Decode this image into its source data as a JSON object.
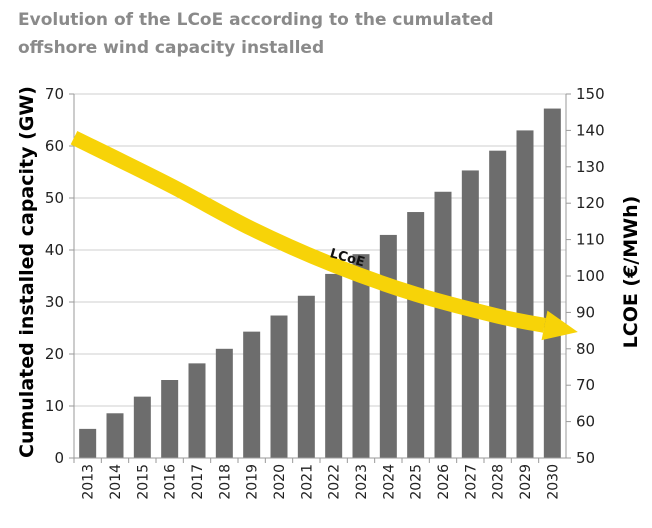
{
  "title_lines": [
    "Evolution of the LCoE according to the cumulated",
    "offshore wind capacity installed"
  ],
  "colors": {
    "bar": "#6d6d6d",
    "lcoe": "#f7d308",
    "title": "#8a8a8a"
  },
  "chart_data": {
    "type": "bar",
    "title": "Evolution of the LCoE according to the cumulated offshore wind capacity installed",
    "categories": [
      "2013",
      "2014",
      "2015",
      "2016",
      "2017",
      "2018",
      "2019",
      "2020",
      "2021",
      "2022",
      "2023",
      "2024",
      "2025",
      "2026",
      "2027",
      "2028",
      "2029",
      "2030"
    ],
    "series": [
      {
        "name": "Cumulated installed capacity (GW)",
        "axis": "left",
        "values": [
          5.6,
          8.6,
          11.8,
          15,
          18.2,
          21,
          24.3,
          27.4,
          31.2,
          35.4,
          39.2,
          42.9,
          47.3,
          51.2,
          55.3,
          59.1,
          63,
          67.2
        ]
      },
      {
        "name": "LCoE",
        "type": "line",
        "axis": "right",
        "x": [
          2013,
          2016,
          2019,
          2022,
          2025,
          2028,
          2030
        ],
        "values": [
          138,
          125,
          113,
          103,
          95,
          89,
          86
        ]
      }
    ],
    "ylabel": "Cumulated installed capacity (GW)",
    "ylim": [
      0,
      70
    ],
    "yticks": [
      0,
      10,
      20,
      30,
      40,
      50,
      60,
      70
    ],
    "y2label": "LCOE (€/MWh)",
    "y2lim": [
      50,
      150
    ],
    "y2ticks": [
      50,
      60,
      70,
      80,
      90,
      100,
      110,
      120,
      130,
      140,
      150
    ],
    "annotations": [
      {
        "text": "LCoE",
        "x": 2022.5,
        "y2": 105
      }
    ],
    "grid": true,
    "legend": "none"
  }
}
